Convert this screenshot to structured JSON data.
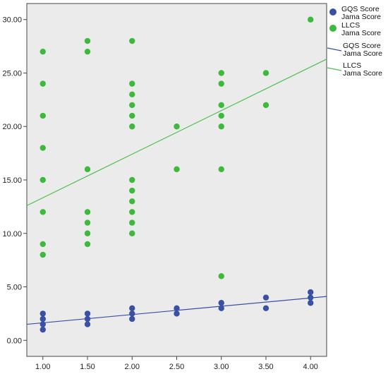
{
  "chart_data": {
    "type": "scatter",
    "title": "",
    "xlabel": "",
    "ylabel": "",
    "xlim": [
      0.82,
      4.18
    ],
    "ylim": [
      -1.5,
      31.5
    ],
    "xticks": [
      1.0,
      1.5,
      2.0,
      2.5,
      3.0,
      3.5,
      4.0
    ],
    "xtick_labels": [
      "1.00",
      "1.50",
      "2.00",
      "2.50",
      "3.00",
      "3.50",
      "4.00"
    ],
    "yticks": [
      0,
      5,
      10,
      15,
      20,
      25,
      30
    ],
    "ytick_labels": [
      "0.00",
      "5.00",
      "10.00",
      "15.00",
      "20.00",
      "25.00",
      "30.00"
    ],
    "plot_background": "#ebebeb",
    "grid": false,
    "legend_position": "right",
    "series": [
      {
        "name": "GQS Score Jama Score",
        "label_lines": [
          "GQS Score",
          "Jama Score"
        ],
        "color": "#3950a3",
        "points": [
          [
            1.0,
            1.0
          ],
          [
            1.0,
            1.5
          ],
          [
            1.0,
            2.0
          ],
          [
            1.0,
            2.5
          ],
          [
            1.5,
            1.5
          ],
          [
            1.5,
            2.0
          ],
          [
            1.5,
            2.5
          ],
          [
            2.0,
            2.0
          ],
          [
            2.0,
            2.5
          ],
          [
            2.0,
            3.0
          ],
          [
            2.5,
            2.5
          ],
          [
            2.5,
            3.0
          ],
          [
            3.0,
            3.0
          ],
          [
            3.0,
            3.5
          ],
          [
            3.5,
            3.0
          ],
          [
            3.5,
            4.0
          ],
          [
            4.0,
            3.5
          ],
          [
            4.0,
            4.0
          ],
          [
            4.0,
            4.5
          ]
        ],
        "fit_line": [
          [
            0.82,
            1.5
          ],
          [
            4.18,
            4.1
          ]
        ],
        "fit_label_lines": [
          "GQS Score",
          "Jama Score"
        ]
      },
      {
        "name": "LLCS Jama Score",
        "label_lines": [
          "LLCS",
          "Jama Score"
        ],
        "color": "#3dba3c",
        "fit_color": "#4fbf4f",
        "points": [
          [
            1.0,
            8
          ],
          [
            1.0,
            9
          ],
          [
            1.0,
            12
          ],
          [
            1.0,
            15
          ],
          [
            1.0,
            18
          ],
          [
            1.0,
            21
          ],
          [
            1.0,
            24
          ],
          [
            1.0,
            27
          ],
          [
            1.5,
            9
          ],
          [
            1.5,
            10
          ],
          [
            1.5,
            11
          ],
          [
            1.5,
            12
          ],
          [
            1.5,
            16
          ],
          [
            1.5,
            27
          ],
          [
            1.5,
            28
          ],
          [
            2.0,
            10
          ],
          [
            2.0,
            11
          ],
          [
            2.0,
            12
          ],
          [
            2.0,
            13
          ],
          [
            2.0,
            14
          ],
          [
            2.0,
            15
          ],
          [
            2.0,
            20
          ],
          [
            2.0,
            21
          ],
          [
            2.0,
            22
          ],
          [
            2.0,
            23
          ],
          [
            2.0,
            24
          ],
          [
            2.0,
            28
          ],
          [
            2.5,
            16
          ],
          [
            2.5,
            20
          ],
          [
            3.0,
            6
          ],
          [
            3.0,
            16
          ],
          [
            3.0,
            20
          ],
          [
            3.0,
            21
          ],
          [
            3.0,
            22
          ],
          [
            3.0,
            24
          ],
          [
            3.0,
            25
          ],
          [
            3.5,
            22
          ],
          [
            3.5,
            25
          ],
          [
            4.0,
            30
          ]
        ],
        "fit_line": [
          [
            0.82,
            12.6
          ],
          [
            4.18,
            26.3
          ]
        ],
        "fit_label_lines": [
          "LLCS",
          "Jama Score"
        ]
      }
    ]
  }
}
